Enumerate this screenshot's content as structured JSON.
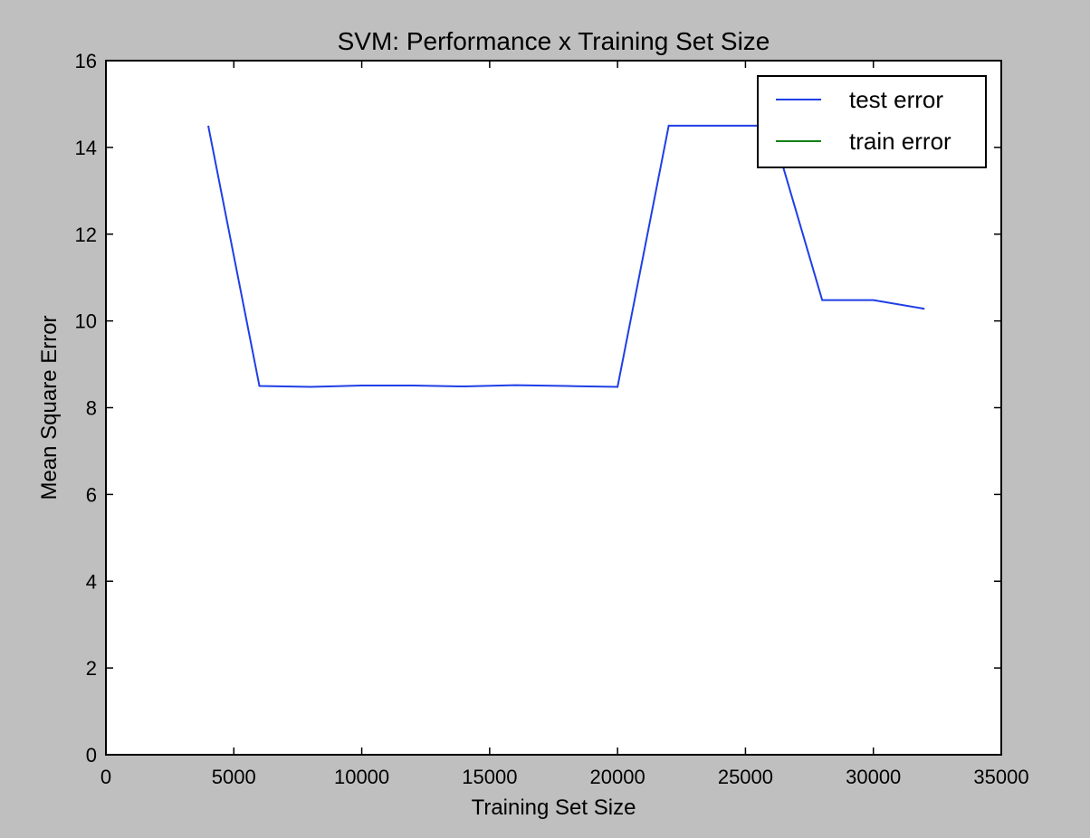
{
  "chart_data": {
    "type": "line",
    "title": "SVM: Performance x Training Set Size",
    "xlabel": "Training Set Size",
    "ylabel": "Mean Square Error",
    "xlim": [
      0,
      35000
    ],
    "ylim": [
      0,
      16
    ],
    "xticks": [
      0,
      5000,
      10000,
      15000,
      20000,
      25000,
      30000,
      35000
    ],
    "yticks": [
      0,
      2,
      4,
      6,
      8,
      10,
      12,
      14,
      16
    ],
    "grid": false,
    "legend": "top-right",
    "series": [
      {
        "name": "test error",
        "color": "#1f3fe6",
        "x": [
          4000,
          6000,
          8000,
          10000,
          12000,
          14000,
          16000,
          18000,
          20000,
          22000,
          24000,
          26000,
          28000,
          30000,
          32000
        ],
        "y": [
          14.5,
          8.5,
          8.48,
          8.51,
          8.51,
          8.49,
          8.52,
          8.5,
          8.48,
          14.5,
          14.5,
          14.5,
          10.48,
          10.48,
          10.28
        ]
      },
      {
        "name": "train error",
        "color": "#128012",
        "x": [],
        "y": []
      }
    ]
  }
}
